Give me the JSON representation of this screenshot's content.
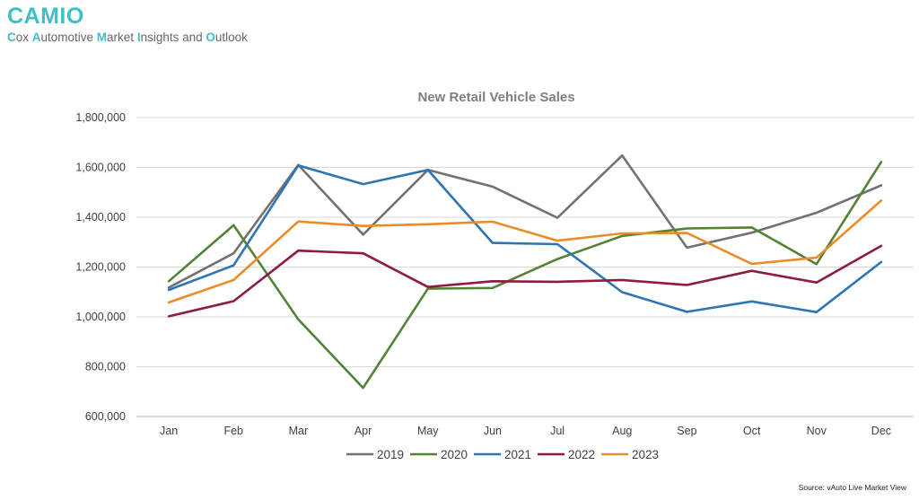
{
  "brand": {
    "title": "CAMIO",
    "subtitle_parts": [
      {
        "cap": "C",
        "rest": "ox "
      },
      {
        "cap": "A",
        "rest": "utomotive "
      },
      {
        "cap": "M",
        "rest": "arket "
      },
      {
        "cap": "I",
        "rest": "nsights and "
      },
      {
        "cap": "O",
        "rest": "utlook"
      }
    ]
  },
  "source": "Source: vAuto Live Market View",
  "colors": {
    "brand": "#3fbfc8",
    "grid": "#d9d9d9",
    "text": "#595959"
  },
  "chart_data": {
    "type": "line",
    "title": "New Retail Vehicle Sales",
    "xlabel": "",
    "ylabel": "",
    "categories": [
      "Jan",
      "Feb",
      "Mar",
      "Apr",
      "May",
      "Jun",
      "Jul",
      "Aug",
      "Sep",
      "Oct",
      "Nov",
      "Dec"
    ],
    "ylim": [
      600000,
      1800000
    ],
    "yticks": [
      600000,
      800000,
      1000000,
      1200000,
      1400000,
      1600000,
      1800000
    ],
    "ytick_labels": [
      "600,000",
      "800,000",
      "1,000,000",
      "1,200,000",
      "1,400,000",
      "1,600,000",
      "1,800,000"
    ],
    "grid": true,
    "legend_position": "bottom",
    "series": [
      {
        "name": "2019",
        "color": "#767171",
        "values": [
          1118000,
          1255000,
          1610000,
          1330000,
          1590000,
          1523000,
          1398000,
          1648000,
          1278000,
          1338000,
          1418000,
          1528000
        ]
      },
      {
        "name": "2020",
        "color": "#548235",
        "values": [
          1143000,
          1368000,
          990000,
          715000,
          1113000,
          1116000,
          1232000,
          1325000,
          1355000,
          1359000,
          1212000,
          1622000
        ]
      },
      {
        "name": "2021",
        "color": "#2e75b6",
        "values": [
          1108000,
          1207000,
          1608000,
          1533000,
          1590000,
          1297000,
          1292000,
          1099000,
          1020000,
          1062000,
          1019000,
          1220000
        ]
      },
      {
        "name": "2022",
        "color": "#8e1b43",
        "values": [
          1002000,
          1063000,
          1266000,
          1255000,
          1120000,
          1143000,
          1141000,
          1148000,
          1128000,
          1185000,
          1138000,
          1285000
        ]
      },
      {
        "name": "2023",
        "color": "#e88d2a",
        "values": [
          1058000,
          1148000,
          1383000,
          1365000,
          1372000,
          1382000,
          1306000,
          1335000,
          1337000,
          1213000,
          1238000,
          1467000
        ]
      }
    ]
  }
}
